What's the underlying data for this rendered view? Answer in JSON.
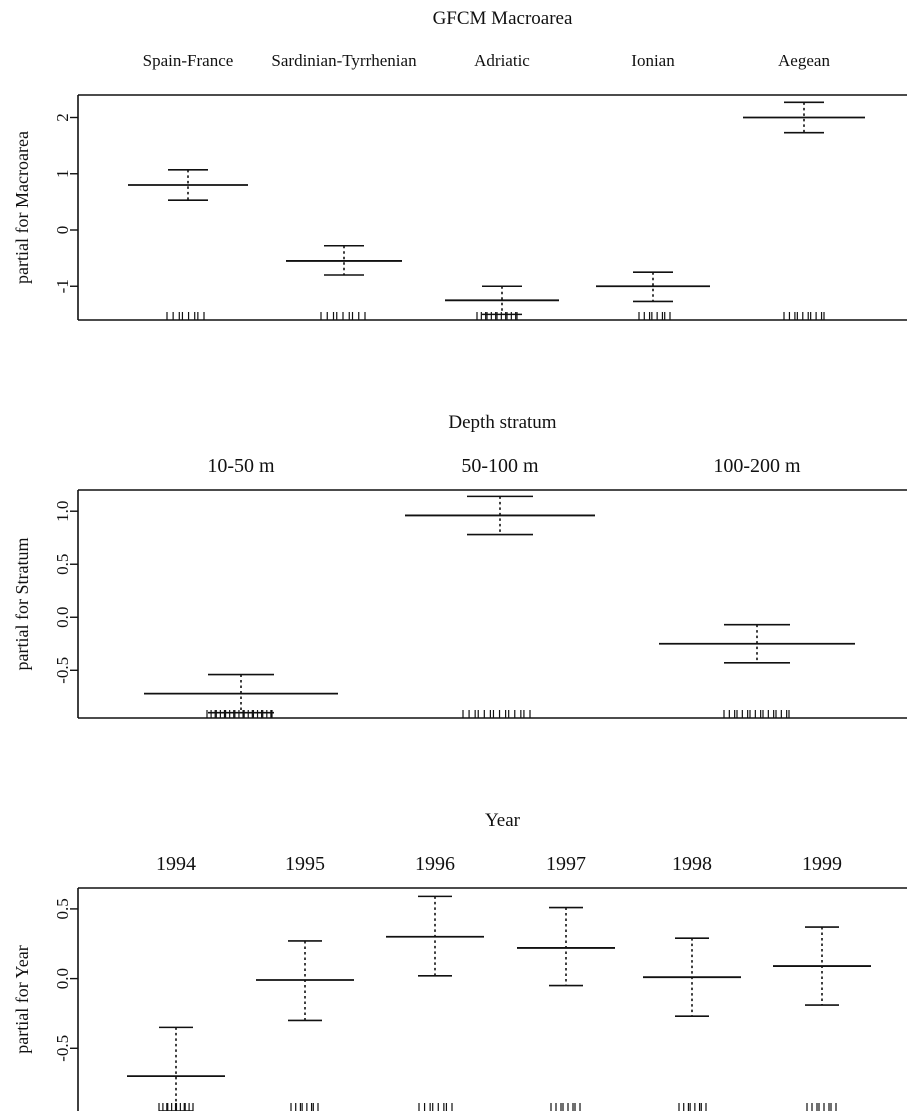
{
  "chart_data": [
    {
      "type": "partial_effect",
      "title": "GFCM  Macroarea",
      "ylabel": "partial for Macroarea",
      "ylim": [
        -1.6,
        2.4
      ],
      "yticks": [
        -1,
        0,
        1,
        2
      ],
      "ytick_labels": [
        "-1",
        "0",
        "1",
        "2"
      ],
      "categories": [
        "Spain-France",
        "Sardinian-Tyrrhenian",
        "Adriatic",
        "Ionian",
        "Aegean"
      ],
      "values": [
        0.8,
        -0.55,
        -1.25,
        -1.0,
        2.0
      ],
      "lower": [
        0.53,
        -0.8,
        -1.5,
        -1.27,
        1.73
      ],
      "upper": [
        1.07,
        -0.28,
        -1.0,
        -0.75,
        2.27
      ]
    },
    {
      "type": "partial_effect",
      "title": "Depth  stratum",
      "ylabel": "partial for Stratum",
      "ylim": [
        -0.95,
        1.2
      ],
      "yticks": [
        -0.5,
        0.0,
        0.5,
        1.0
      ],
      "ytick_labels": [
        "-0.5",
        "0.0",
        "0.5",
        "1.0"
      ],
      "categories": [
        "10-50 m",
        "50-100 m",
        "100-200 m"
      ],
      "values": [
        -0.72,
        0.96,
        -0.25
      ],
      "lower": [
        -0.9,
        0.78,
        -0.43
      ],
      "upper": [
        -0.54,
        1.14,
        -0.07
      ]
    },
    {
      "type": "partial_effect",
      "title": "Year",
      "ylabel": "partial for Year",
      "ylim": [
        -0.95,
        0.65
      ],
      "yticks": [
        -0.5,
        0.0,
        0.5
      ],
      "ytick_labels": [
        "-0.5",
        "0.0",
        "0.5"
      ],
      "categories": [
        "1994",
        "1995",
        "1996",
        "1997",
        "1998",
        "1999"
      ],
      "values": [
        -0.7,
        -0.01,
        0.3,
        0.22,
        0.01,
        0.09
      ],
      "lower": [
        -0.95,
        -0.3,
        0.02,
        -0.05,
        -0.27,
        -0.19
      ],
      "upper": [
        -0.35,
        0.27,
        0.59,
        0.51,
        0.29,
        0.37
      ]
    }
  ]
}
